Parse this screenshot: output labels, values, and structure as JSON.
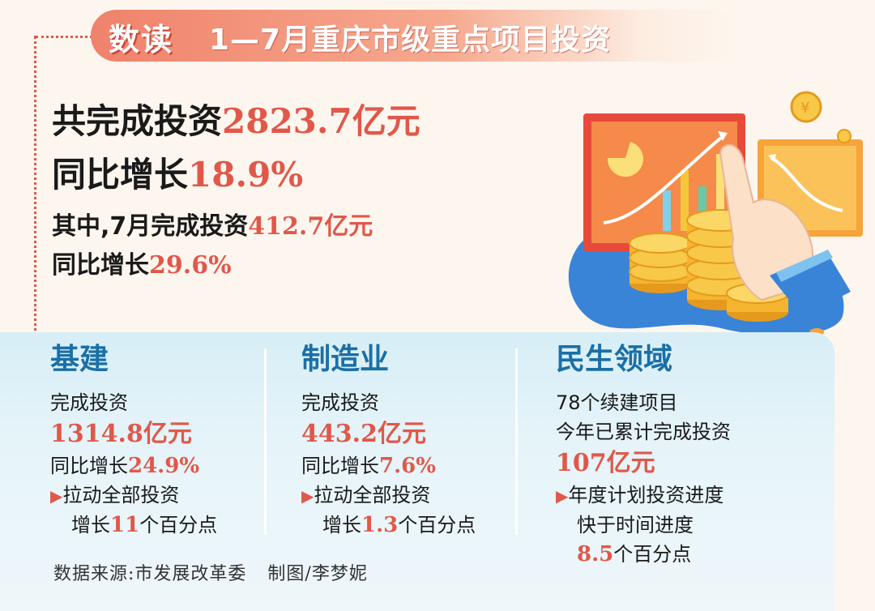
{
  "header": {
    "tag": "数读",
    "title": "1—7月重庆市级重点项目投资"
  },
  "summary": {
    "total_label": "共完成投资",
    "total_value": "2823.7亿元",
    "yoy_label": "同比增长",
    "yoy_value": "18.9%",
    "july_label": "其中,7月完成投资",
    "july_value": "412.7亿元",
    "july_yoy_label": "同比增长",
    "july_yoy_value": "29.6%"
  },
  "columns": [
    {
      "heading": "基建",
      "invest_label": "完成投资",
      "invest_value": "1314.8亿元",
      "yoy_label": "同比增长",
      "yoy_value": "24.9%",
      "note_line1": "拉动全部投资",
      "note_pre": "增长",
      "note_value": "11",
      "note_post": "个百分点"
    },
    {
      "heading": "制造业",
      "invest_label": "完成投资",
      "invest_value": "443.2亿元",
      "yoy_label": "同比增长",
      "yoy_value": "7.6%",
      "note_line1": "拉动全部投资",
      "note_pre": "增长",
      "note_value": "1.3",
      "note_post": "个百分点"
    },
    {
      "heading": "民生领域",
      "line1": "78个续建项目",
      "line2": "今年已累计完成投资",
      "invest_value": "107亿元",
      "note_line1": "年度计划投资进度",
      "note_line2": "快于时间进度",
      "note_value": "8.5",
      "note_post": "个百分点"
    }
  ],
  "footer": {
    "source": "数据来源:市发展改革委",
    "credit": "制图/李梦妮"
  },
  "icons": [
    "chart-board-icon",
    "coin-stack-icon",
    "pointing-hand-icon",
    "yuan-coin-icon"
  ],
  "colors": {
    "accent_red": "#e0584a",
    "heading_blue": "#1b6fa6",
    "panel_blue": "#d7eef6",
    "background": "#fdf6ef"
  }
}
